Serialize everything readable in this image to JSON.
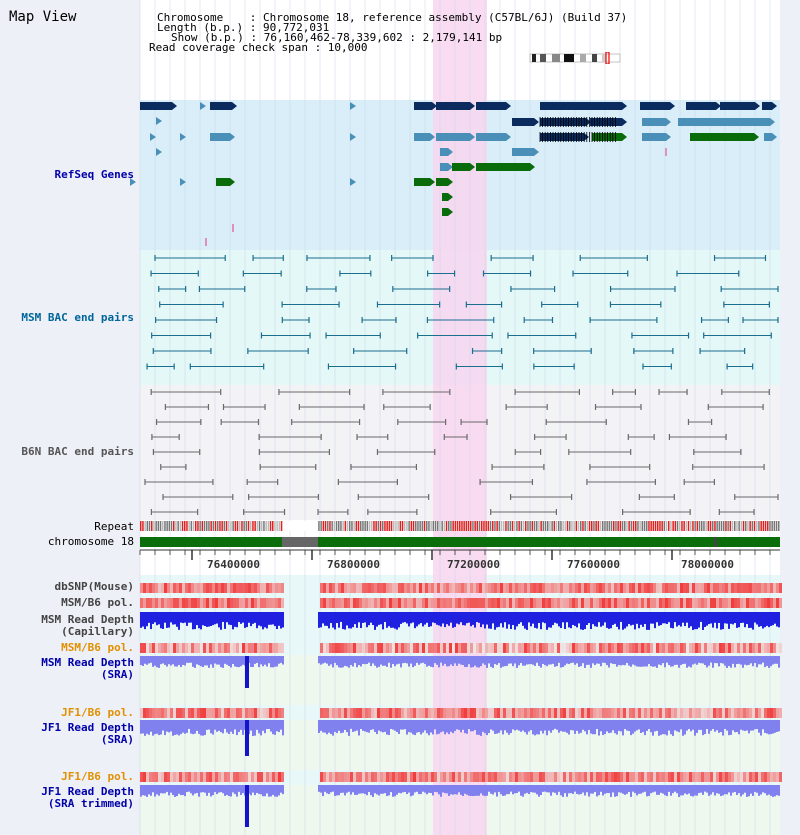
{
  "page": {
    "title": "Map View"
  },
  "info": {
    "chromosome": "Chromosome    : Chromosome 18, reference assembly (C57BL/6J) (Build 37)",
    "length": "Length (b.p.) : 90,772,031",
    "show": "Show (b.p.) : 76,160,462-78,339,602 : 2,179,141 bp",
    "coverage": "Read coverage check span : 10,000"
  },
  "tracks": {
    "refseq": "RefSeq Genes",
    "msm_bac": "MSM BAC end pairs",
    "b6n_bac": "B6N BAC end pairs",
    "repeat": "Repeat",
    "chromosome": "chromosome 18",
    "dbsnp": "dbSNP(Mouse)",
    "msm_pol1": "MSM/B6 pol.",
    "msm_depth_cap_1": "MSM Read Depth",
    "msm_depth_cap_2": "(Capillary)",
    "msm_pol2": "MSM/B6 pol.",
    "msm_depth_sra_1": "MSM Read Depth",
    "msm_depth_sra_2": "(SRA)",
    "jf1_pol1": "JF1/B6 pol.",
    "jf1_depth_sra_1": "JF1 Read Depth",
    "jf1_depth_sra_2": "(SRA)",
    "jf1_pol2": "JF1/B6 pol.",
    "jf1_depth_trim_1": "JF1 Read Depth",
    "jf1_depth_trim_2": "(SRA trimmed)"
  },
  "axis": {
    "ticks": [
      "76400000",
      "76800000",
      "77200000",
      "77600000",
      "78000000"
    ]
  },
  "colors": {
    "refseq_label": "#0000aa",
    "msm_label": "#006699",
    "b6n_label": "#555555",
    "orange_label": "#e09000",
    "blue_label": "#0000aa",
    "refseq_bg": "#d9eef9",
    "msm_bg": "#e4f8f8",
    "b6n_bg": "#f3f3f6",
    "highlight": "#f8d6f0",
    "gene_dark": "#0b2a5e",
    "gene_mid": "#4a8fb8",
    "gene_green": "#0a6b0a",
    "chrom_green": "#0b6e0b",
    "snp_red": "#e83030",
    "depth_blue": "#2020e0",
    "depth_light": "#8080ee"
  }
}
